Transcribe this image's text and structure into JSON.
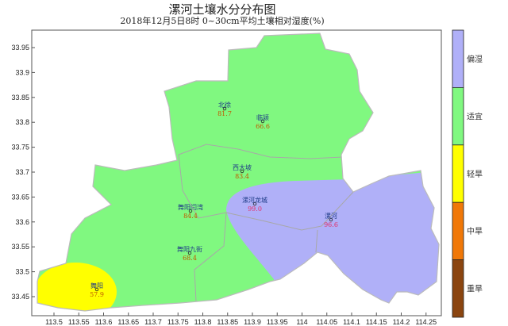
{
  "title": "漯河土壤水分分布图",
  "subtitle": "2018年12月5日8时 0~30cm平均土壤相对湿度(%)",
  "axes": {
    "x_ticks": [
      "113.5",
      "113.55",
      "113.6",
      "113.65",
      "113.7",
      "113.75",
      "113.8",
      "113.85",
      "113.9",
      "113.95",
      "114",
      "114.05",
      "114.1",
      "114.15",
      "114.2",
      "114.25"
    ],
    "y_ticks": [
      "33.95",
      "33.9",
      "33.85",
      "33.8",
      "33.75",
      "33.7",
      "33.65",
      "33.6",
      "33.55",
      "33.5",
      "33.45"
    ]
  },
  "legend": [
    {
      "label": "偏湿",
      "color": "#b0b0f8"
    },
    {
      "label": "适宜",
      "color": "#80f880"
    },
    {
      "label": "轻旱",
      "color": "#ffff00"
    },
    {
      "label": "中旱",
      "color": "#f07808"
    },
    {
      "label": "重旱",
      "color": "#8b4510"
    }
  ],
  "stations": [
    {
      "name": "北徐",
      "value": "81.7"
    },
    {
      "name": "临颍",
      "value": "66.6"
    },
    {
      "name": "西大坡",
      "value": "83.4"
    },
    {
      "name": "漯河龙城",
      "value": "99.0"
    },
    {
      "name": "舞阳闫湾",
      "value": "84.4"
    },
    {
      "name": "漯河",
      "value": "96.6"
    },
    {
      "name": "舞阳九街",
      "value": "68.4"
    },
    {
      "name": "舞阳",
      "value": "57.9"
    }
  ]
}
